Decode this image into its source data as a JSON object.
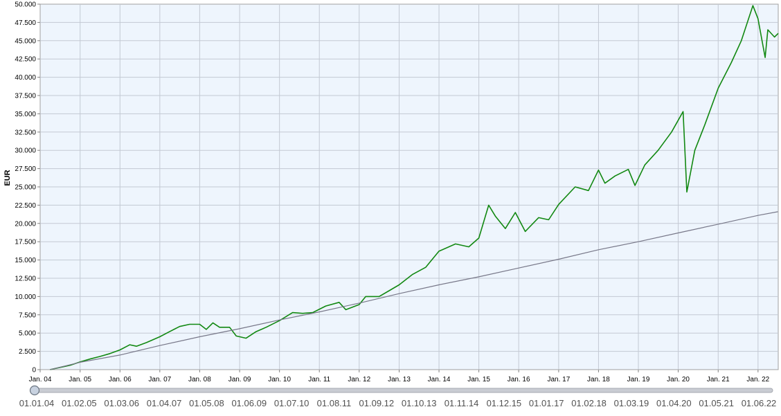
{
  "chart_data": {
    "type": "line",
    "title": "",
    "xlabel": "",
    "ylabel": "EUR",
    "ylim": [
      0,
      50000
    ],
    "xlim": [
      "2004-01-01",
      "2022-07-05"
    ],
    "grid": true,
    "y_ticks": [
      "0",
      "2.500",
      "5.000",
      "7.500",
      "10.000",
      "12.500",
      "15.000",
      "17.500",
      "20.000",
      "22.500",
      "25.000",
      "27.500",
      "30.000",
      "32.500",
      "35.000",
      "37.500",
      "40.000",
      "42.500",
      "45.000",
      "47.500",
      "50.000"
    ],
    "x_ticks": [
      {
        "label": "Jan. 04",
        "date": "2004-01-01"
      },
      {
        "label": "Jan. 05",
        "date": "2005-01-01"
      },
      {
        "label": "Jan. 06",
        "date": "2006-01-01"
      },
      {
        "label": "Jan. 07",
        "date": "2007-01-01"
      },
      {
        "label": "Jan. 08",
        "date": "2008-01-01"
      },
      {
        "label": "Jan. 09",
        "date": "2009-01-01"
      },
      {
        "label": "Jan. 10",
        "date": "2010-01-01"
      },
      {
        "label": "Jan. 11",
        "date": "2011-01-01"
      },
      {
        "label": "Jan. 12",
        "date": "2012-01-01"
      },
      {
        "label": "Jan. 13",
        "date": "2013-01-01"
      },
      {
        "label": "Jan. 14",
        "date": "2014-01-01"
      },
      {
        "label": "Jan. 15",
        "date": "2015-01-01"
      },
      {
        "label": "Jan. 16",
        "date": "2016-01-01"
      },
      {
        "label": "Jan. 17",
        "date": "2017-01-01"
      },
      {
        "label": "Jan. 18",
        "date": "2018-01-01"
      },
      {
        "label": "Jan. 19",
        "date": "2019-01-01"
      },
      {
        "label": "Jan. 20",
        "date": "2020-01-01"
      },
      {
        "label": "Jan. 21",
        "date": "2021-01-01"
      },
      {
        "label": "Jan. 22",
        "date": "2022-01-01"
      }
    ],
    "series": [
      {
        "color": "#118811",
        "points": [
          [
            "2004-04-01",
            0
          ],
          [
            "2004-07-01",
            300
          ],
          [
            "2004-10-01",
            600
          ],
          [
            "2005-01-01",
            1050
          ],
          [
            "2005-04-01",
            1450
          ],
          [
            "2005-07-01",
            1800
          ],
          [
            "2005-10-01",
            2200
          ],
          [
            "2006-01-01",
            2700
          ],
          [
            "2006-04-01",
            3400
          ],
          [
            "2006-06-01",
            3200
          ],
          [
            "2006-09-01",
            3700
          ],
          [
            "2007-01-01",
            4500
          ],
          [
            "2007-04-01",
            5200
          ],
          [
            "2007-07-01",
            5900
          ],
          [
            "2007-10-01",
            6200
          ],
          [
            "2008-01-01",
            6200
          ],
          [
            "2008-03-01",
            5500
          ],
          [
            "2008-05-01",
            6400
          ],
          [
            "2008-07-01",
            5800
          ],
          [
            "2008-10-01",
            5800
          ],
          [
            "2008-12-01",
            4600
          ],
          [
            "2009-03-01",
            4300
          ],
          [
            "2009-06-01",
            5200
          ],
          [
            "2009-09-01",
            5800
          ],
          [
            "2010-01-01",
            6700
          ],
          [
            "2010-05-01",
            7800
          ],
          [
            "2010-08-01",
            7700
          ],
          [
            "2010-11-01",
            7800
          ],
          [
            "2011-03-01",
            8700
          ],
          [
            "2011-07-01",
            9200
          ],
          [
            "2011-09-01",
            8200
          ],
          [
            "2012-01-01",
            8900
          ],
          [
            "2012-03-01",
            10000
          ],
          [
            "2012-07-01",
            10000
          ],
          [
            "2012-10-01",
            10800
          ],
          [
            "2013-01-01",
            11600
          ],
          [
            "2013-05-01",
            13000
          ],
          [
            "2013-09-01",
            14000
          ],
          [
            "2014-01-01",
            16200
          ],
          [
            "2014-06-01",
            17200
          ],
          [
            "2014-10-01",
            16800
          ],
          [
            "2015-01-01",
            18000
          ],
          [
            "2015-04-01",
            22500
          ],
          [
            "2015-06-01",
            21000
          ],
          [
            "2015-09-01",
            19300
          ],
          [
            "2015-12-01",
            21500
          ],
          [
            "2016-03-01",
            18900
          ],
          [
            "2016-07-01",
            20800
          ],
          [
            "2016-10-01",
            20500
          ],
          [
            "2017-01-01",
            22600
          ],
          [
            "2017-06-01",
            25000
          ],
          [
            "2017-10-01",
            24500
          ],
          [
            "2018-01-01",
            27300
          ],
          [
            "2018-03-01",
            25500
          ],
          [
            "2018-06-01",
            26500
          ],
          [
            "2018-10-01",
            27400
          ],
          [
            "2018-12-01",
            25200
          ],
          [
            "2019-03-01",
            28000
          ],
          [
            "2019-07-01",
            30000
          ],
          [
            "2019-11-01",
            32500
          ],
          [
            "2020-02-15",
            35300
          ],
          [
            "2020-03-20",
            24300
          ],
          [
            "2020-06-01",
            30000
          ],
          [
            "2020-09-01",
            33500
          ],
          [
            "2021-01-01",
            38500
          ],
          [
            "2021-05-01",
            42000
          ],
          [
            "2021-08-01",
            45000
          ],
          [
            "2021-11-15",
            49800
          ],
          [
            "2022-01-01",
            48000
          ],
          [
            "2022-03-07",
            42700
          ],
          [
            "2022-04-01",
            46500
          ],
          [
            "2022-06-01",
            45500
          ],
          [
            "2022-07-05",
            46000
          ]
        ]
      },
      {
        "color": "#777788",
        "points": [
          [
            "2004-04-01",
            0
          ],
          [
            "2005-01-01",
            1000
          ],
          [
            "2006-01-01",
            2000
          ],
          [
            "2007-01-01",
            3300
          ],
          [
            "2008-01-01",
            4500
          ],
          [
            "2009-01-01",
            5600
          ],
          [
            "2010-01-01",
            6800
          ],
          [
            "2011-01-01",
            7900
          ],
          [
            "2012-01-01",
            9100
          ],
          [
            "2013-01-01",
            10400
          ],
          [
            "2014-01-01",
            11600
          ],
          [
            "2015-01-01",
            12700
          ],
          [
            "2016-01-01",
            13900
          ],
          [
            "2017-01-01",
            15100
          ],
          [
            "2018-01-01",
            16400
          ],
          [
            "2019-01-01",
            17500
          ],
          [
            "2020-01-01",
            18700
          ],
          [
            "2021-01-01",
            19900
          ],
          [
            "2022-01-01",
            21100
          ],
          [
            "2022-07-01",
            21600
          ]
        ]
      }
    ]
  },
  "slider": {
    "labels": [
      "01.01.04",
      "01.02.05",
      "01.03.06",
      "01.04.07",
      "01.05.08",
      "01.06.09",
      "01.07.10",
      "01.08.11",
      "01.09.12",
      "01.10.13",
      "01.11.14",
      "01.12.15",
      "01.01.17",
      "01.02.18",
      "01.03.19",
      "01.04.20",
      "01.05.21",
      "01.06.22"
    ],
    "handle_value": 0
  }
}
